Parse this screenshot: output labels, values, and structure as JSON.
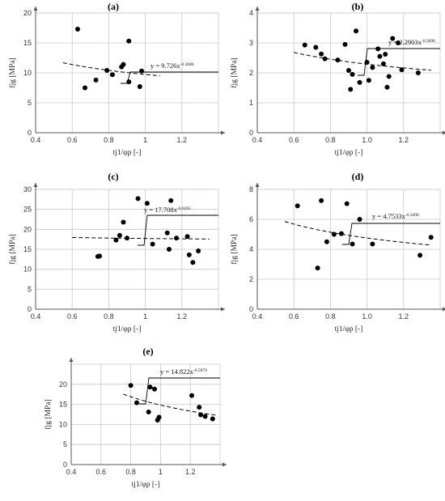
{
  "chart_data": [
    {
      "panel": "(a)",
      "type": "scatter",
      "xlabel": "tj1/φp [-]",
      "ylabel": "fjg [MPa]",
      "xlim": [
        0.4,
        1.4
      ],
      "ylim": [
        0,
        20
      ],
      "xticks": [
        "0.4",
        "0.6",
        "0.8",
        "1",
        "1.2"
      ],
      "yticks": [
        "0",
        "5",
        "10",
        "15",
        "20"
      ],
      "grid": true,
      "equation": {
        "base": "y = 9.726x",
        "exponent": "-0.3086"
      },
      "trend_range": [
        0.55,
        1.08
      ],
      "points": [
        {
          "x": 0.63,
          "y": 17.3
        },
        {
          "x": 0.67,
          "y": 7.5
        },
        {
          "x": 0.73,
          "y": 8.8
        },
        {
          "x": 0.79,
          "y": 10.4
        },
        {
          "x": 0.82,
          "y": 9.7
        },
        {
          "x": 0.87,
          "y": 11.0
        },
        {
          "x": 0.88,
          "y": 11.4
        },
        {
          "x": 0.91,
          "y": 15.3
        },
        {
          "x": 0.91,
          "y": 8.5
        },
        {
          "x": 0.97,
          "y": 7.7
        },
        {
          "x": 0.98,
          "y": 10.3
        }
      ]
    },
    {
      "panel": "(b)",
      "type": "scatter",
      "xlabel": "tj1/φp [-]",
      "ylabel": "fjg [MPa]",
      "xlim": [
        0.4,
        1.4
      ],
      "ylim": [
        0,
        4
      ],
      "xticks": [
        "0.4",
        "0.6",
        "0.8",
        "1.0",
        "1.2"
      ],
      "yticks": [
        "0",
        "1",
        "2",
        "3",
        "4"
      ],
      "grid": true,
      "equation": {
        "base": "y = 2.2903x",
        "exponent": "-0.3096"
      },
      "trend_range": [
        0.6,
        1.35
      ],
      "points": [
        {
          "x": 0.66,
          "y": 2.93
        },
        {
          "x": 0.72,
          "y": 2.85
        },
        {
          "x": 0.75,
          "y": 2.63
        },
        {
          "x": 0.77,
          "y": 2.47
        },
        {
          "x": 0.84,
          "y": 2.43
        },
        {
          "x": 0.88,
          "y": 2.95
        },
        {
          "x": 0.9,
          "y": 2.08
        },
        {
          "x": 0.91,
          "y": 1.45
        },
        {
          "x": 0.92,
          "y": 1.95
        },
        {
          "x": 0.94,
          "y": 3.4
        },
        {
          "x": 0.96,
          "y": 1.68
        },
        {
          "x": 1.0,
          "y": 2.35
        },
        {
          "x": 1.01,
          "y": 1.75
        },
        {
          "x": 1.03,
          "y": 2.18
        },
        {
          "x": 1.06,
          "y": 2.8
        },
        {
          "x": 1.07,
          "y": 2.55
        },
        {
          "x": 1.09,
          "y": 2.3
        },
        {
          "x": 1.1,
          "y": 2.62
        },
        {
          "x": 1.11,
          "y": 1.52
        },
        {
          "x": 1.12,
          "y": 1.88
        },
        {
          "x": 1.14,
          "y": 3.15
        },
        {
          "x": 1.17,
          "y": 3.0
        },
        {
          "x": 1.19,
          "y": 2.1
        },
        {
          "x": 1.28,
          "y": 2.0
        }
      ]
    },
    {
      "panel": "(c)",
      "type": "scatter",
      "xlabel": "tj1/φp [-]",
      "ylabel": "fjg [MPa]",
      "xlim": [
        0.4,
        1.4
      ],
      "ylim": [
        0,
        30
      ],
      "xticks": [
        "0.4",
        "0.6",
        "0.8",
        "1",
        "1.2"
      ],
      "yticks": [
        "0",
        "5",
        "10",
        "15",
        "20",
        "25",
        "30"
      ],
      "grid": true,
      "equation": {
        "base": "y = 17.708x",
        "exponent": "-0.0265"
      },
      "trend_range": [
        0.6,
        1.35
      ],
      "points": [
        {
          "x": 0.74,
          "y": 13.2
        },
        {
          "x": 0.75,
          "y": 13.3
        },
        {
          "x": 0.84,
          "y": 17.3
        },
        {
          "x": 0.86,
          "y": 18.5
        },
        {
          "x": 0.88,
          "y": 21.8
        },
        {
          "x": 0.9,
          "y": 17.8
        },
        {
          "x": 0.96,
          "y": 27.7
        },
        {
          "x": 1.01,
          "y": 26.5
        },
        {
          "x": 1.04,
          "y": 16.3
        },
        {
          "x": 1.12,
          "y": 19.1
        },
        {
          "x": 1.13,
          "y": 15.0
        },
        {
          "x": 1.14,
          "y": 27.2
        },
        {
          "x": 1.17,
          "y": 17.8
        },
        {
          "x": 1.23,
          "y": 18.2
        },
        {
          "x": 1.24,
          "y": 13.6
        },
        {
          "x": 1.26,
          "y": 11.7
        },
        {
          "x": 1.29,
          "y": 14.6
        }
      ]
    },
    {
      "panel": "(d)",
      "type": "scatter",
      "xlabel": "tj1/φp [-]",
      "ylabel": "fjg [MPa]",
      "xlim": [
        0.4,
        1.4
      ],
      "ylim": [
        0,
        8
      ],
      "xticks": [
        "0.4",
        "0.6",
        "0.8",
        "1.0",
        "1.2"
      ],
      "yticks": [
        "0",
        "2",
        "4",
        "6",
        "8"
      ],
      "grid": true,
      "equation": {
        "base": "y = 4.7533x",
        "exponent": "-0.3496"
      },
      "trend_range": [
        0.55,
        1.35
      ],
      "points": [
        {
          "x": 0.62,
          "y": 6.9
        },
        {
          "x": 0.73,
          "y": 2.75
        },
        {
          "x": 0.75,
          "y": 7.25
        },
        {
          "x": 0.78,
          "y": 4.5
        },
        {
          "x": 0.82,
          "y": 5.0
        },
        {
          "x": 0.86,
          "y": 5.05
        },
        {
          "x": 0.89,
          "y": 7.05
        },
        {
          "x": 0.92,
          "y": 4.35
        },
        {
          "x": 0.96,
          "y": 6.0
        },
        {
          "x": 1.03,
          "y": 4.35
        },
        {
          "x": 1.29,
          "y": 3.6
        },
        {
          "x": 1.35,
          "y": 4.8
        }
      ]
    },
    {
      "panel": "(e)",
      "type": "scatter",
      "xlabel": "tj1/φp [-]",
      "ylabel": "fjg [MPa]",
      "xlim": [
        0.4,
        1.4
      ],
      "ylim": [
        0,
        25
      ],
      "xticks": [
        "0.4",
        "0.6",
        "0.8",
        "1",
        "1.2"
      ],
      "yticks": [
        "0",
        "5",
        "10",
        "15",
        "20"
      ],
      "grid": true,
      "equation": {
        "base": "y = 14.822x",
        "exponent": "-0.5879"
      },
      "trend_range": [
        0.75,
        1.38
      ],
      "points": [
        {
          "x": 0.8,
          "y": 19.7
        },
        {
          "x": 0.84,
          "y": 15.4
        },
        {
          "x": 0.92,
          "y": 13.1
        },
        {
          "x": 0.93,
          "y": 19.3
        },
        {
          "x": 0.96,
          "y": 18.8
        },
        {
          "x": 0.98,
          "y": 11.1
        },
        {
          "x": 0.99,
          "y": 11.8
        },
        {
          "x": 1.21,
          "y": 17.2
        },
        {
          "x": 1.26,
          "y": 14.3
        },
        {
          "x": 1.27,
          "y": 12.4
        },
        {
          "x": 1.3,
          "y": 12.0
        },
        {
          "x": 1.35,
          "y": 11.4
        }
      ]
    }
  ]
}
